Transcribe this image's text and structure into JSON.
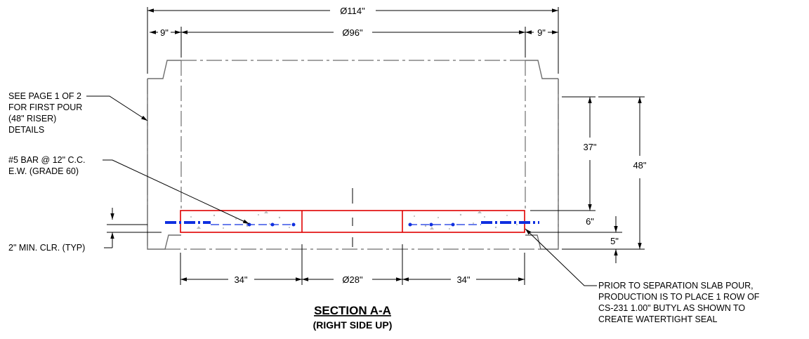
{
  "dimensions": {
    "overall_diameter": "Ø114\"",
    "left_wall": "9\"",
    "inner_diameter": "Ø96\"",
    "right_wall": "9\"",
    "height_37": "37\"",
    "height_48": "48\"",
    "slab_6": "6\"",
    "bottom_5": "5\"",
    "bottom_left_34": "34\"",
    "center_28": "Ø28\"",
    "bottom_right_34": "34\""
  },
  "notes": {
    "see_page": [
      "SEE PAGE 1 OF 2",
      "FOR FIRST POUR",
      "(48\" RISER)",
      "DETAILS"
    ],
    "rebar": [
      "#5 BAR @ 12\" C.C.",
      "E.W. (GRADE 60)"
    ],
    "clearance": "2\" MIN. CLR. (TYP)",
    "butyl": [
      "PRIOR TO SEPARATION SLAB POUR,",
      "PRODUCTION IS TO PLACE 1 ROW OF",
      "CS-231 1.00\" BUTYL AS SHOWN TO",
      "CREATE WATERTIGHT SEAL"
    ]
  },
  "title": {
    "main": "SECTION A-A",
    "sub": "(RIGHT SIDE UP)"
  },
  "colors": {
    "slab_outline": "#e00000",
    "rebar": "#1030e0",
    "riser_outline": "#6e6e6e"
  }
}
